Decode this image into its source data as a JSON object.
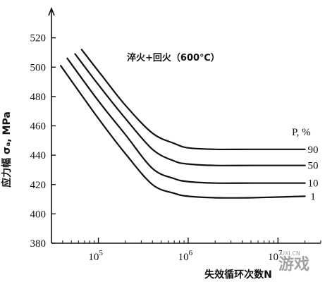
{
  "chart_data": {
    "type": "line",
    "title": "",
    "annotation": "淬火+回火（600℃）",
    "xlabel": "失效循环次数N",
    "ylabel": "应力幅 σₐ, MPa",
    "x_scale": "log",
    "xlim": [
      30000,
      30000000
    ],
    "ylim": [
      380,
      540
    ],
    "y_ticks": [
      380,
      400,
      420,
      440,
      460,
      480,
      500,
      520
    ],
    "x_ticks": [
      {
        "value": 100000,
        "base": "10",
        "exp": "5"
      },
      {
        "value": 1000000,
        "base": "10",
        "exp": "6"
      },
      {
        "value": 10000000,
        "base": "10",
        "exp": "7"
      }
    ],
    "legend_title": "P, %",
    "grid": false,
    "series": [
      {
        "name": "90",
        "x": [
          65000,
          110000,
          200000,
          400000,
          700000,
          1000000,
          2000000,
          5000000,
          20000000
        ],
        "y": [
          512,
          494,
          474,
          455,
          448,
          445,
          444,
          444,
          444
        ]
      },
      {
        "name": "50",
        "x": [
          55000,
          100000,
          200000,
          400000,
          700000,
          1000000,
          2000000,
          5000000,
          20000000
        ],
        "y": [
          509,
          488,
          465,
          444,
          436,
          434,
          433,
          433,
          433
        ]
      },
      {
        "name": "10",
        "x": [
          45000,
          100000,
          200000,
          400000,
          700000,
          1000000,
          2000000,
          5000000,
          20000000
        ],
        "y": [
          506,
          477,
          454,
          431,
          424,
          422,
          421,
          421,
          421
        ]
      },
      {
        "name": "1",
        "x": [
          38000,
          100000,
          200000,
          400000,
          700000,
          1000000,
          2000000,
          5000000,
          20000000
        ],
        "y": [
          501,
          465,
          441,
          420,
          414,
          412,
          411,
          411,
          412
        ]
      }
    ]
  },
  "watermark": {
    "text": "游戏",
    "subtext": "UXI.CN"
  }
}
